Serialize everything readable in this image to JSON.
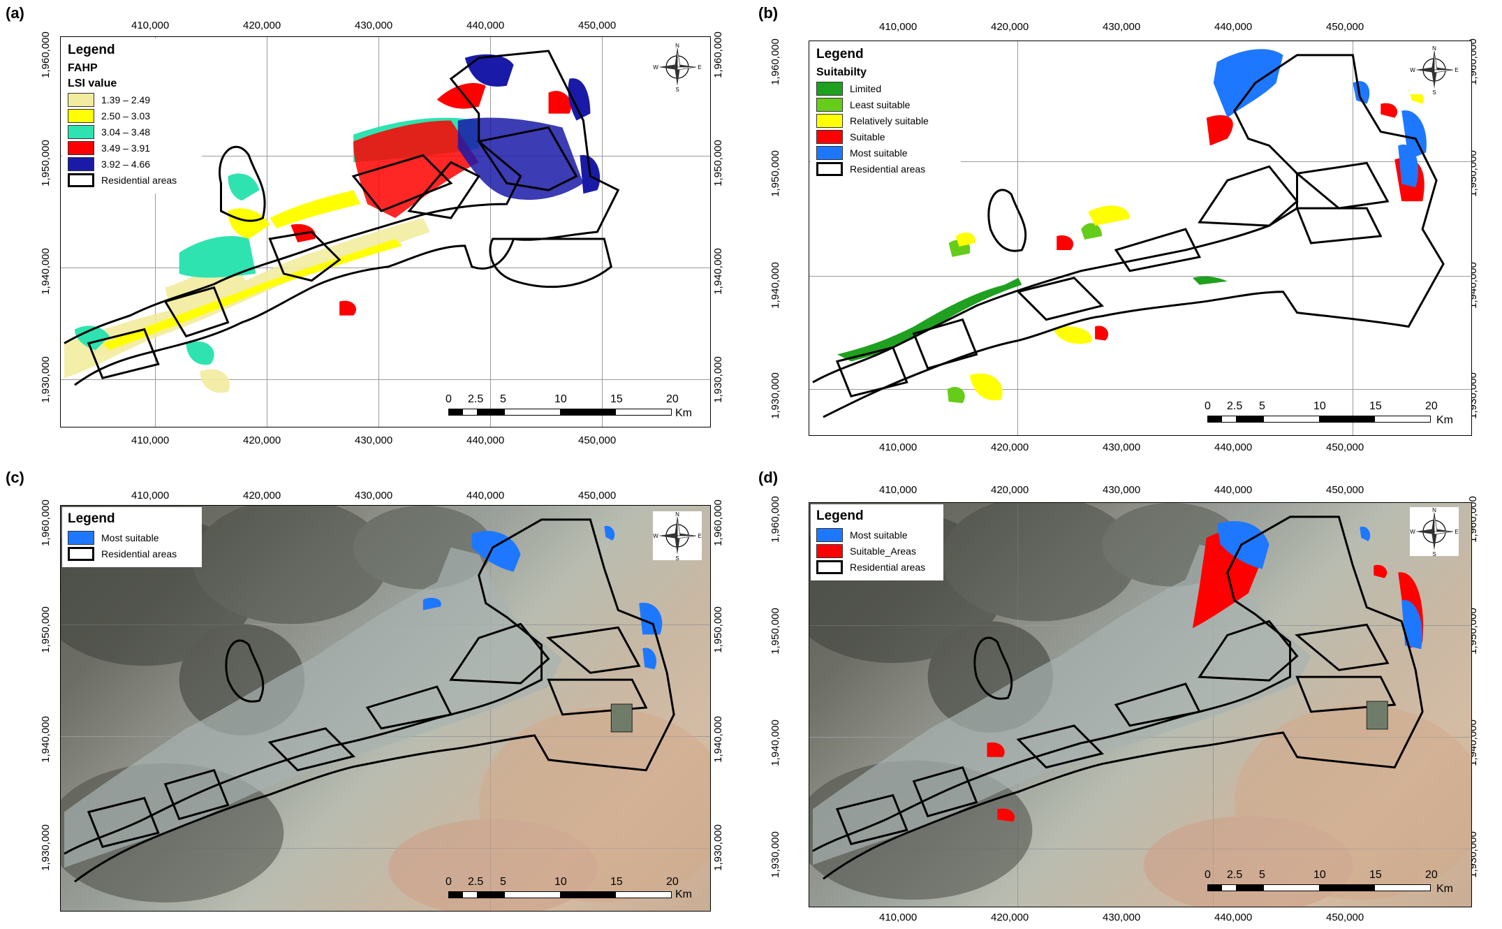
{
  "panels": {
    "a": {
      "label": "(a)",
      "legend": {
        "title": "Legend",
        "subtitle1": "FAHP",
        "subtitle2": "LSI value",
        "items": [
          {
            "label": "1.39 – 2.49",
            "color": "#f2ec9e"
          },
          {
            "label": "2.50 – 3.03",
            "color": "#ffff00"
          },
          {
            "label": "3.04 – 3.48",
            "color": "#2ee3b0"
          },
          {
            "label": "3.49 – 3.91",
            "color": "#ff0000"
          },
          {
            "label": "3.92 – 4.66",
            "color": "#1a1aa8"
          },
          {
            "label": "Residential areas",
            "color": "outline"
          }
        ]
      }
    },
    "b": {
      "label": "(b)",
      "legend": {
        "title": "Legend",
        "subtitle1": "Suitabilty",
        "items": [
          {
            "label": "Limited",
            "color": "#1fa01f"
          },
          {
            "label": "Least suitable",
            "color": "#66cc1a"
          },
          {
            "label": "Relatively suitable",
            "color": "#ffff00"
          },
          {
            "label": "Suitable",
            "color": "#ff0000"
          },
          {
            "label": "Most suitable",
            "color": "#1e78ff"
          },
          {
            "label": "Residential areas",
            "color": "outline"
          }
        ]
      }
    },
    "c": {
      "label": "(c)",
      "legend": {
        "title": "Legend",
        "items": [
          {
            "label": "Most suitable",
            "color": "#1e78ff"
          },
          {
            "label": "Residential areas",
            "color": "outline"
          }
        ]
      }
    },
    "d": {
      "label": "(d)",
      "legend": {
        "title": "Legend",
        "items": [
          {
            "label": "Most suitable",
            "color": "#1e78ff"
          },
          {
            "label": "Suitable_Areas",
            "color": "#ff0000"
          },
          {
            "label": "Residential areas",
            "color": "outline"
          }
        ]
      }
    }
  },
  "x_ticks": [
    "410,000",
    "420,000",
    "430,000",
    "440,000",
    "450,000"
  ],
  "y_ticks": [
    "1,960,000",
    "1,950,000",
    "1,940,000",
    "1,930,000"
  ],
  "compass": {
    "n": "N",
    "s": "S",
    "e": "E",
    "w": "W"
  },
  "scale": {
    "labels": [
      "0",
      "2.5",
      "5",
      "10",
      "15",
      "20"
    ],
    "unit": "Km"
  }
}
